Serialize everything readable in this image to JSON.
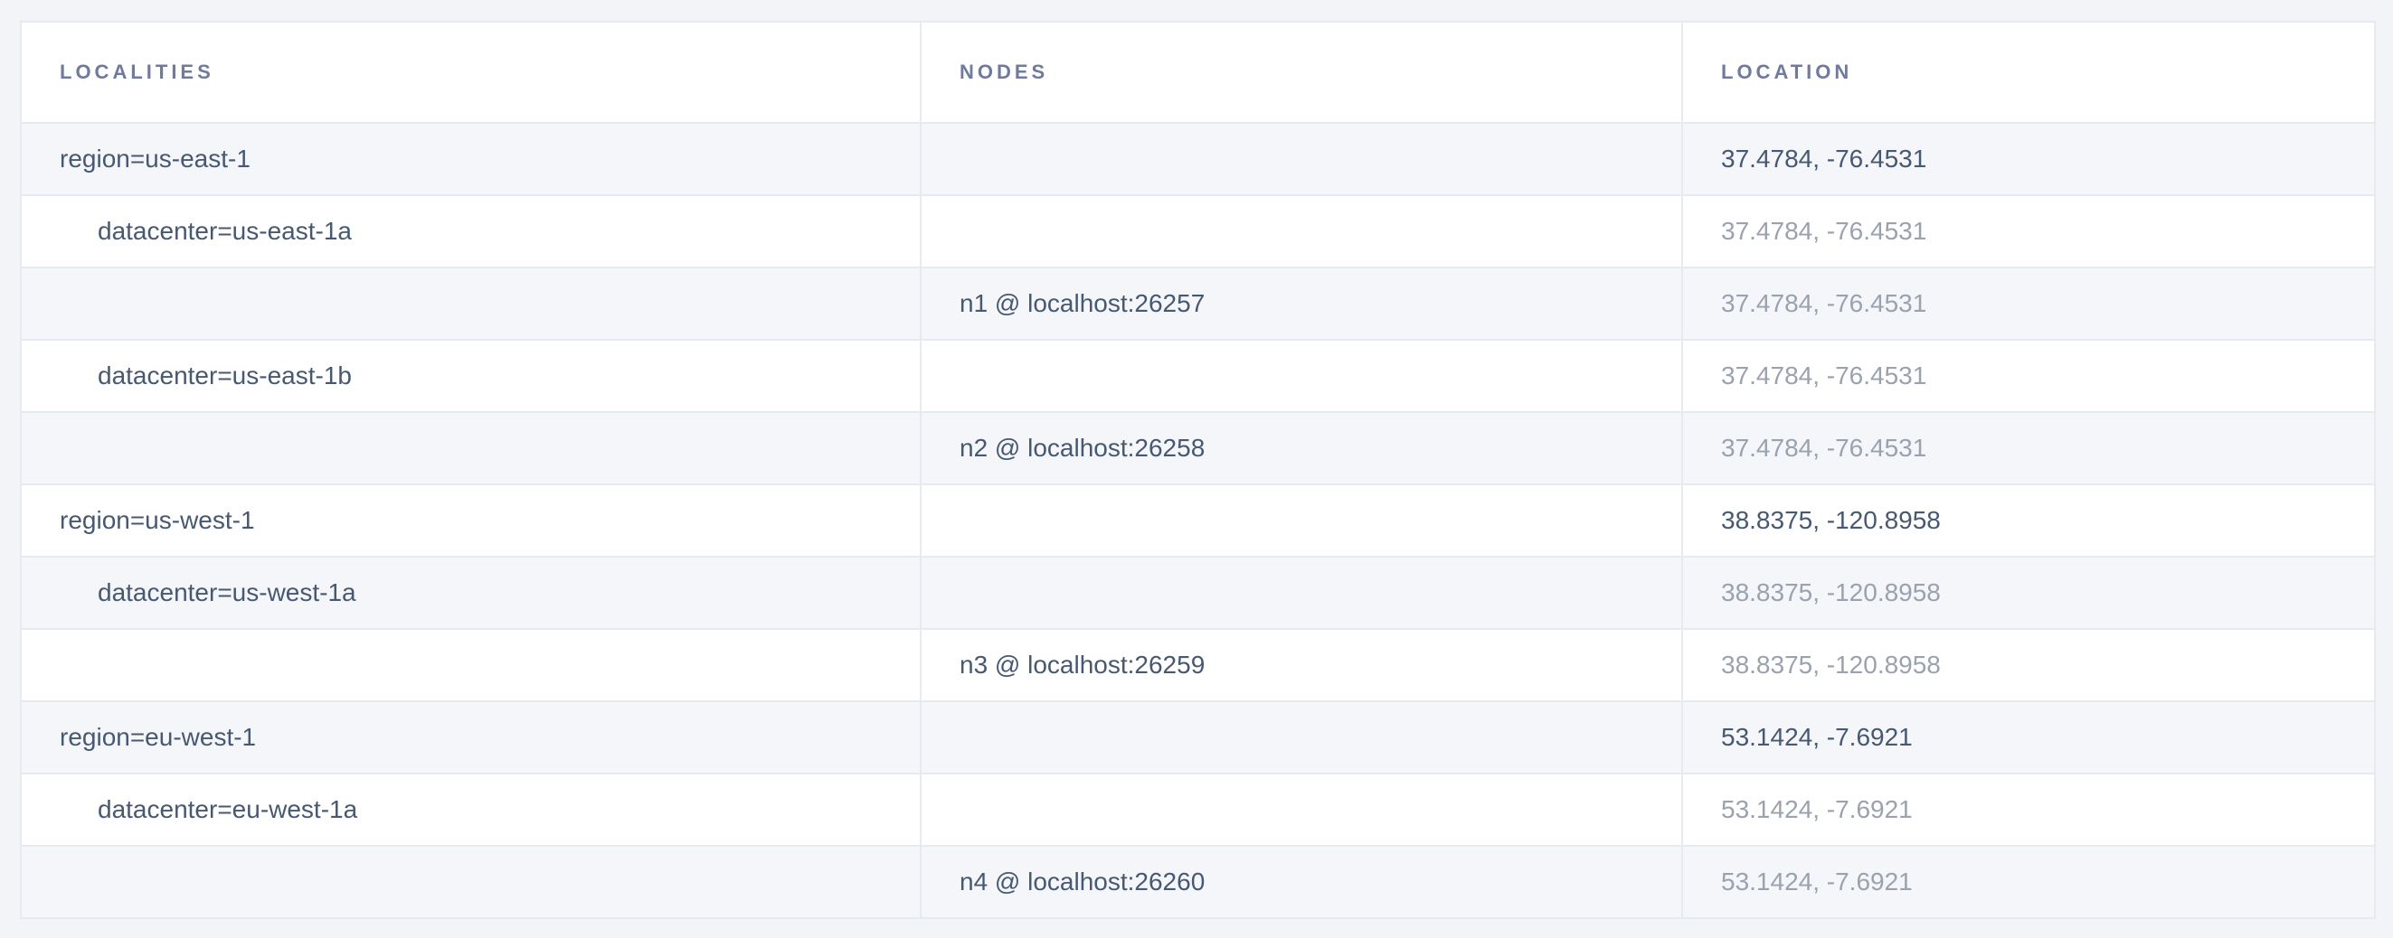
{
  "page": {
    "background_color": "#f2f4f8",
    "row_alt_color": "#f4f6fa",
    "row_color": "#ffffff",
    "border_color": "#e6eaf1",
    "text_dark_color": "#475872",
    "text_muted_color": "#9aa2ae",
    "header_text_color": "#6f7a9d"
  },
  "table": {
    "columns": [
      {
        "key": "localities",
        "label": "LOCALITIES"
      },
      {
        "key": "nodes",
        "label": "NODES"
      },
      {
        "key": "location",
        "label": "LOCATION"
      }
    ],
    "rows": [
      {
        "locality": "region=us-east-1",
        "indent": 0,
        "node": "",
        "location": "37.4784, -76.4531",
        "location_emphasis": "dark"
      },
      {
        "locality": "datacenter=us-east-1a",
        "indent": 1,
        "node": "",
        "location": "37.4784, -76.4531",
        "location_emphasis": "muted"
      },
      {
        "locality": "",
        "indent": 0,
        "node": "n1 @ localhost:26257",
        "location": "37.4784, -76.4531",
        "location_emphasis": "muted"
      },
      {
        "locality": "datacenter=us-east-1b",
        "indent": 1,
        "node": "",
        "location": "37.4784, -76.4531",
        "location_emphasis": "muted"
      },
      {
        "locality": "",
        "indent": 0,
        "node": "n2 @ localhost:26258",
        "location": "37.4784, -76.4531",
        "location_emphasis": "muted"
      },
      {
        "locality": "region=us-west-1",
        "indent": 0,
        "node": "",
        "location": "38.8375, -120.8958",
        "location_emphasis": "dark"
      },
      {
        "locality": "datacenter=us-west-1a",
        "indent": 1,
        "node": "",
        "location": "38.8375, -120.8958",
        "location_emphasis": "muted"
      },
      {
        "locality": "",
        "indent": 0,
        "node": "n3 @ localhost:26259",
        "location": "38.8375, -120.8958",
        "location_emphasis": "muted"
      },
      {
        "locality": "region=eu-west-1",
        "indent": 0,
        "node": "",
        "location": "53.1424, -7.6921",
        "location_emphasis": "dark"
      },
      {
        "locality": "datacenter=eu-west-1a",
        "indent": 1,
        "node": "",
        "location": "53.1424, -7.6921",
        "location_emphasis": "muted"
      },
      {
        "locality": "",
        "indent": 0,
        "node": "n4 @ localhost:26260",
        "location": "53.1424, -7.6921",
        "location_emphasis": "muted"
      }
    ]
  }
}
